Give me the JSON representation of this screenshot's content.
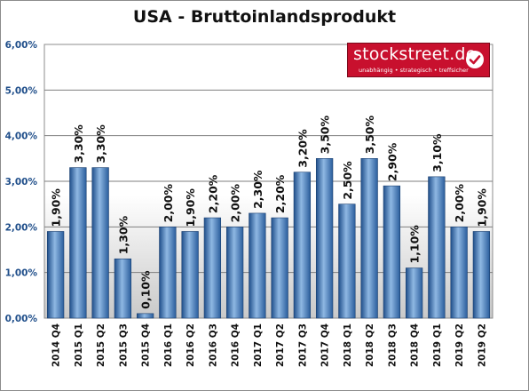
{
  "chart_data": {
    "type": "bar",
    "title": "USA - Bruttoinlandsprodukt",
    "xlabel": "",
    "ylabel": "",
    "categories": [
      "2014 Q4",
      "2015 Q1",
      "2015 Q2",
      "2015 Q3",
      "2015 Q4",
      "2016 Q1",
      "2016 Q2",
      "2016 Q3",
      "2016 Q4",
      "2017 Q1",
      "2017 Q2",
      "2017 Q3",
      "2017 Q4",
      "2018 Q1",
      "2018 Q2",
      "2018 Q3",
      "2018 Q4",
      "2019 Q1",
      "2019 Q2",
      "2019 Q2"
    ],
    "values": [
      1.9,
      3.3,
      3.3,
      1.3,
      0.1,
      2.0,
      1.9,
      2.2,
      2.0,
      2.3,
      2.2,
      3.2,
      3.5,
      2.5,
      3.5,
      2.9,
      1.1,
      3.1,
      2.0,
      1.9
    ],
    "value_labels": [
      "1,90%",
      "3,30%",
      "3,30%",
      "1,30%",
      "0,10%",
      "2,00%",
      "1,90%",
      "2,20%",
      "2,00%",
      "2,30%",
      "2,20%",
      "3,20%",
      "3,50%",
      "2,50%",
      "3,50%",
      "2,90%",
      "1,10%",
      "3,10%",
      "2,00%",
      "1,90%"
    ],
    "ylim": [
      0,
      6
    ],
    "yticks": [
      0,
      1,
      2,
      3,
      4,
      5,
      6
    ],
    "ytick_labels": [
      "0,00%",
      "1,00%",
      "2,00%",
      "3,00%",
      "4,00%",
      "5,00%",
      "6,00%"
    ],
    "grid": true,
    "legend": "none",
    "colors": {
      "bar_dark": "#1f4e8a",
      "bar_light": "#8fb8e3",
      "axis_text": "#1f4e8a"
    }
  },
  "logo": {
    "name": "stockstreet.de",
    "tagline": "unabhängig • strategisch • treffsicher",
    "icon": "checkmark-icon",
    "color": "#c8102e"
  }
}
